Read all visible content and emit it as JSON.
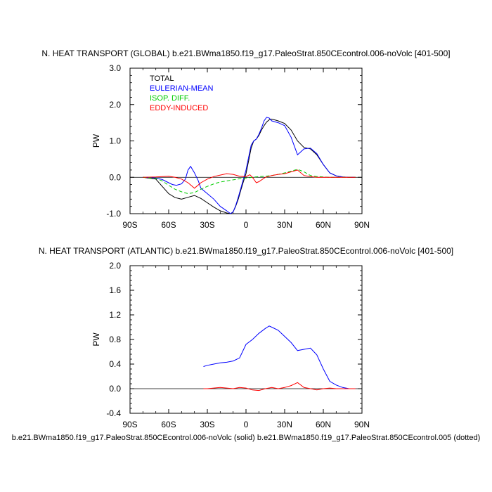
{
  "caption": "b.e21.BWma1850.f19_g17.PaleoStrat.850CEcontrol.006-noVolc (solid) b.e21.BWma1850.f19_g17.PaleoStrat.850CEcontrol.005 (dotted)",
  "colors": {
    "total": "#000000",
    "eulerian": "#0000ff",
    "isop": "#00cc00",
    "eddy": "#ff0000",
    "zero": "#000000"
  },
  "chart_data": [
    {
      "type": "line",
      "title": "N. HEAT TRANSPORT (GLOBAL) b.e21.BWma1850.f19_g17.PaleoStrat.850CEcontrol.006-noVolc [401-500]",
      "ylabel": "PW",
      "xlabel": "",
      "xlim": [
        -90,
        90
      ],
      "ylim": [
        -1.0,
        3.0
      ],
      "xticks": [
        -90,
        -60,
        -30,
        0,
        30,
        60,
        90
      ],
      "xtick_labels": [
        "90S",
        "60S",
        "30S",
        "0",
        "30N",
        "60N",
        "90N"
      ],
      "yticks": [
        -1.0,
        0.0,
        1.0,
        2.0,
        3.0
      ],
      "ytick_labels": [
        "-1.0",
        "0.0",
        "1.0",
        "2.0",
        "3.0"
      ],
      "legend": {
        "placement": "top-left",
        "entries": [
          {
            "label": "TOTAL",
            "color": "#000000"
          },
          {
            "label": "EULERIAN-MEAN",
            "color": "#0000ff"
          },
          {
            "label": "ISOP. DIFF.",
            "color": "#00cc00"
          },
          {
            "label": "EDDY-INDUCED",
            "color": "#ff0000"
          }
        ]
      },
      "series": [
        {
          "name": "TOTAL",
          "color": "#000000",
          "dash": "solid",
          "x": [
            -80,
            -70,
            -65,
            -60,
            -55,
            -50,
            -45,
            -40,
            -35,
            -30,
            -25,
            -20,
            -15,
            -12,
            -10,
            -8,
            -6,
            -4,
            -2,
            0,
            2,
            4,
            6,
            8,
            10,
            12,
            14,
            16,
            18,
            20,
            25,
            30,
            35,
            40,
            45,
            50,
            55,
            60,
            65,
            70,
            75,
            80,
            85
          ],
          "y": [
            0.0,
            -0.05,
            -0.25,
            -0.45,
            -0.56,
            -0.6,
            -0.55,
            -0.5,
            -0.58,
            -0.7,
            -0.82,
            -0.92,
            -0.98,
            -1.0,
            -0.95,
            -0.8,
            -0.6,
            -0.35,
            -0.12,
            0.1,
            0.45,
            0.8,
            1.0,
            1.05,
            1.15,
            1.3,
            1.42,
            1.52,
            1.58,
            1.6,
            1.55,
            1.48,
            1.3,
            1.0,
            0.82,
            0.78,
            0.62,
            0.35,
            0.12,
            0.04,
            0.01,
            0.0,
            0.0
          ]
        },
        {
          "name": "EULERIAN-MEAN",
          "color": "#0000ff",
          "dash": "solid",
          "x": [
            -80,
            -70,
            -65,
            -60,
            -57,
            -54,
            -50,
            -47,
            -45,
            -43,
            -40,
            -37,
            -35,
            -30,
            -25,
            -20,
            -15,
            -12,
            -10,
            -8,
            -6,
            -4,
            -2,
            0,
            2,
            4,
            6,
            8,
            10,
            12,
            14,
            16,
            18,
            20,
            25,
            30,
            35,
            40,
            45,
            50,
            55,
            60,
            65,
            70,
            75,
            80,
            85
          ],
          "y": [
            0.0,
            -0.02,
            -0.06,
            -0.15,
            -0.2,
            -0.22,
            -0.18,
            -0.05,
            0.2,
            0.3,
            0.12,
            -0.1,
            -0.3,
            -0.45,
            -0.6,
            -0.8,
            -0.92,
            -1.0,
            -0.95,
            -0.78,
            -0.55,
            -0.3,
            -0.05,
            0.2,
            0.55,
            0.88,
            1.0,
            1.05,
            1.18,
            1.35,
            1.55,
            1.65,
            1.63,
            1.55,
            1.5,
            1.42,
            1.1,
            0.62,
            0.78,
            0.8,
            0.65,
            0.35,
            0.12,
            0.04,
            0.01,
            0.0,
            0.0
          ]
        },
        {
          "name": "ISOP. DIFF.",
          "color": "#00cc00",
          "dash": "dashed",
          "x": [
            -80,
            -70,
            -65,
            -60,
            -55,
            -50,
            -45,
            -40,
            -35,
            -30,
            -25,
            -20,
            -15,
            -10,
            -5,
            0,
            5,
            10,
            15,
            20,
            25,
            30,
            35,
            40,
            45,
            50,
            55,
            60,
            65,
            70,
            75,
            80,
            85
          ],
          "y": [
            0.0,
            -0.03,
            -0.1,
            -0.22,
            -0.33,
            -0.4,
            -0.45,
            -0.42,
            -0.33,
            -0.25,
            -0.18,
            -0.13,
            -0.1,
            -0.07,
            -0.04,
            -0.02,
            0.0,
            0.02,
            0.03,
            0.05,
            0.08,
            0.12,
            0.17,
            0.22,
            0.15,
            0.05,
            0.02,
            0.01,
            0.0,
            0.0,
            0.0,
            0.0,
            0.0
          ]
        },
        {
          "name": "EDDY-INDUCED",
          "color": "#ff0000",
          "dash": "solid",
          "x": [
            -80,
            -70,
            -65,
            -60,
            -55,
            -50,
            -45,
            -40,
            -35,
            -30,
            -25,
            -20,
            -15,
            -10,
            -5,
            0,
            3,
            5,
            8,
            10,
            15,
            20,
            25,
            30,
            35,
            40,
            45,
            50,
            55,
            60,
            65,
            70,
            75,
            80,
            85
          ],
          "y": [
            0.0,
            0.01,
            0.02,
            0.03,
            0.0,
            -0.05,
            -0.15,
            -0.3,
            -0.15,
            -0.05,
            0.02,
            0.06,
            0.1,
            0.08,
            0.03,
            0.02,
            0.07,
            0.0,
            -0.15,
            -0.12,
            0.0,
            0.05,
            0.08,
            0.1,
            0.15,
            0.2,
            0.05,
            0.02,
            0.0,
            0.0,
            0.0,
            0.0,
            0.0,
            0.0,
            0.0
          ]
        }
      ]
    },
    {
      "type": "line",
      "title": "N. HEAT TRANSPORT (ATLANTIC) b.e21.BWma1850.f19_g17.PaleoStrat.850CEcontrol.006-noVolc [401-500]",
      "ylabel": "PW",
      "xlabel": "",
      "xlim": [
        -90,
        90
      ],
      "ylim": [
        -0.4,
        2.0
      ],
      "xticks": [
        -90,
        -60,
        -30,
        0,
        30,
        60,
        90
      ],
      "xtick_labels": [
        "90S",
        "60S",
        "30S",
        "0",
        "30N",
        "60N",
        "90N"
      ],
      "yticks": [
        -0.4,
        0.0,
        0.4,
        0.8,
        1.2,
        1.6,
        2.0
      ],
      "ytick_labels": [
        "-0.4",
        "0.0",
        "0.4",
        "0.8",
        "1.2",
        "1.6",
        "2.0"
      ],
      "series": [
        {
          "name": "EULERIAN-MEAN",
          "color": "#0000ff",
          "dash": "solid",
          "x": [
            -33,
            -30,
            -25,
            -20,
            -15,
            -10,
            -5,
            0,
            5,
            10,
            15,
            18,
            20,
            25,
            30,
            35,
            40,
            45,
            50,
            55,
            60,
            65,
            70,
            75,
            80,
            85
          ],
          "y": [
            0.36,
            0.38,
            0.4,
            0.42,
            0.43,
            0.45,
            0.5,
            0.72,
            0.8,
            0.9,
            0.98,
            1.02,
            1.0,
            0.95,
            0.85,
            0.75,
            0.62,
            0.64,
            0.66,
            0.55,
            0.32,
            0.12,
            0.06,
            0.02,
            0.0,
            0.0
          ]
        },
        {
          "name": "EDDY-INDUCED",
          "color": "#ff0000",
          "dash": "solid",
          "x": [
            -33,
            -30,
            -25,
            -20,
            -15,
            -10,
            -5,
            0,
            5,
            10,
            15,
            20,
            25,
            30,
            35,
            40,
            45,
            50,
            55,
            60,
            65,
            70,
            75,
            80,
            85
          ],
          "y": [
            0.0,
            0.0,
            0.01,
            0.02,
            0.01,
            0.0,
            0.02,
            0.01,
            -0.02,
            -0.03,
            0.0,
            0.02,
            0.0,
            0.02,
            0.05,
            0.1,
            0.02,
            0.0,
            -0.02,
            0.0,
            0.01,
            0.0,
            0.0,
            0.0,
            0.0
          ]
        }
      ]
    }
  ]
}
